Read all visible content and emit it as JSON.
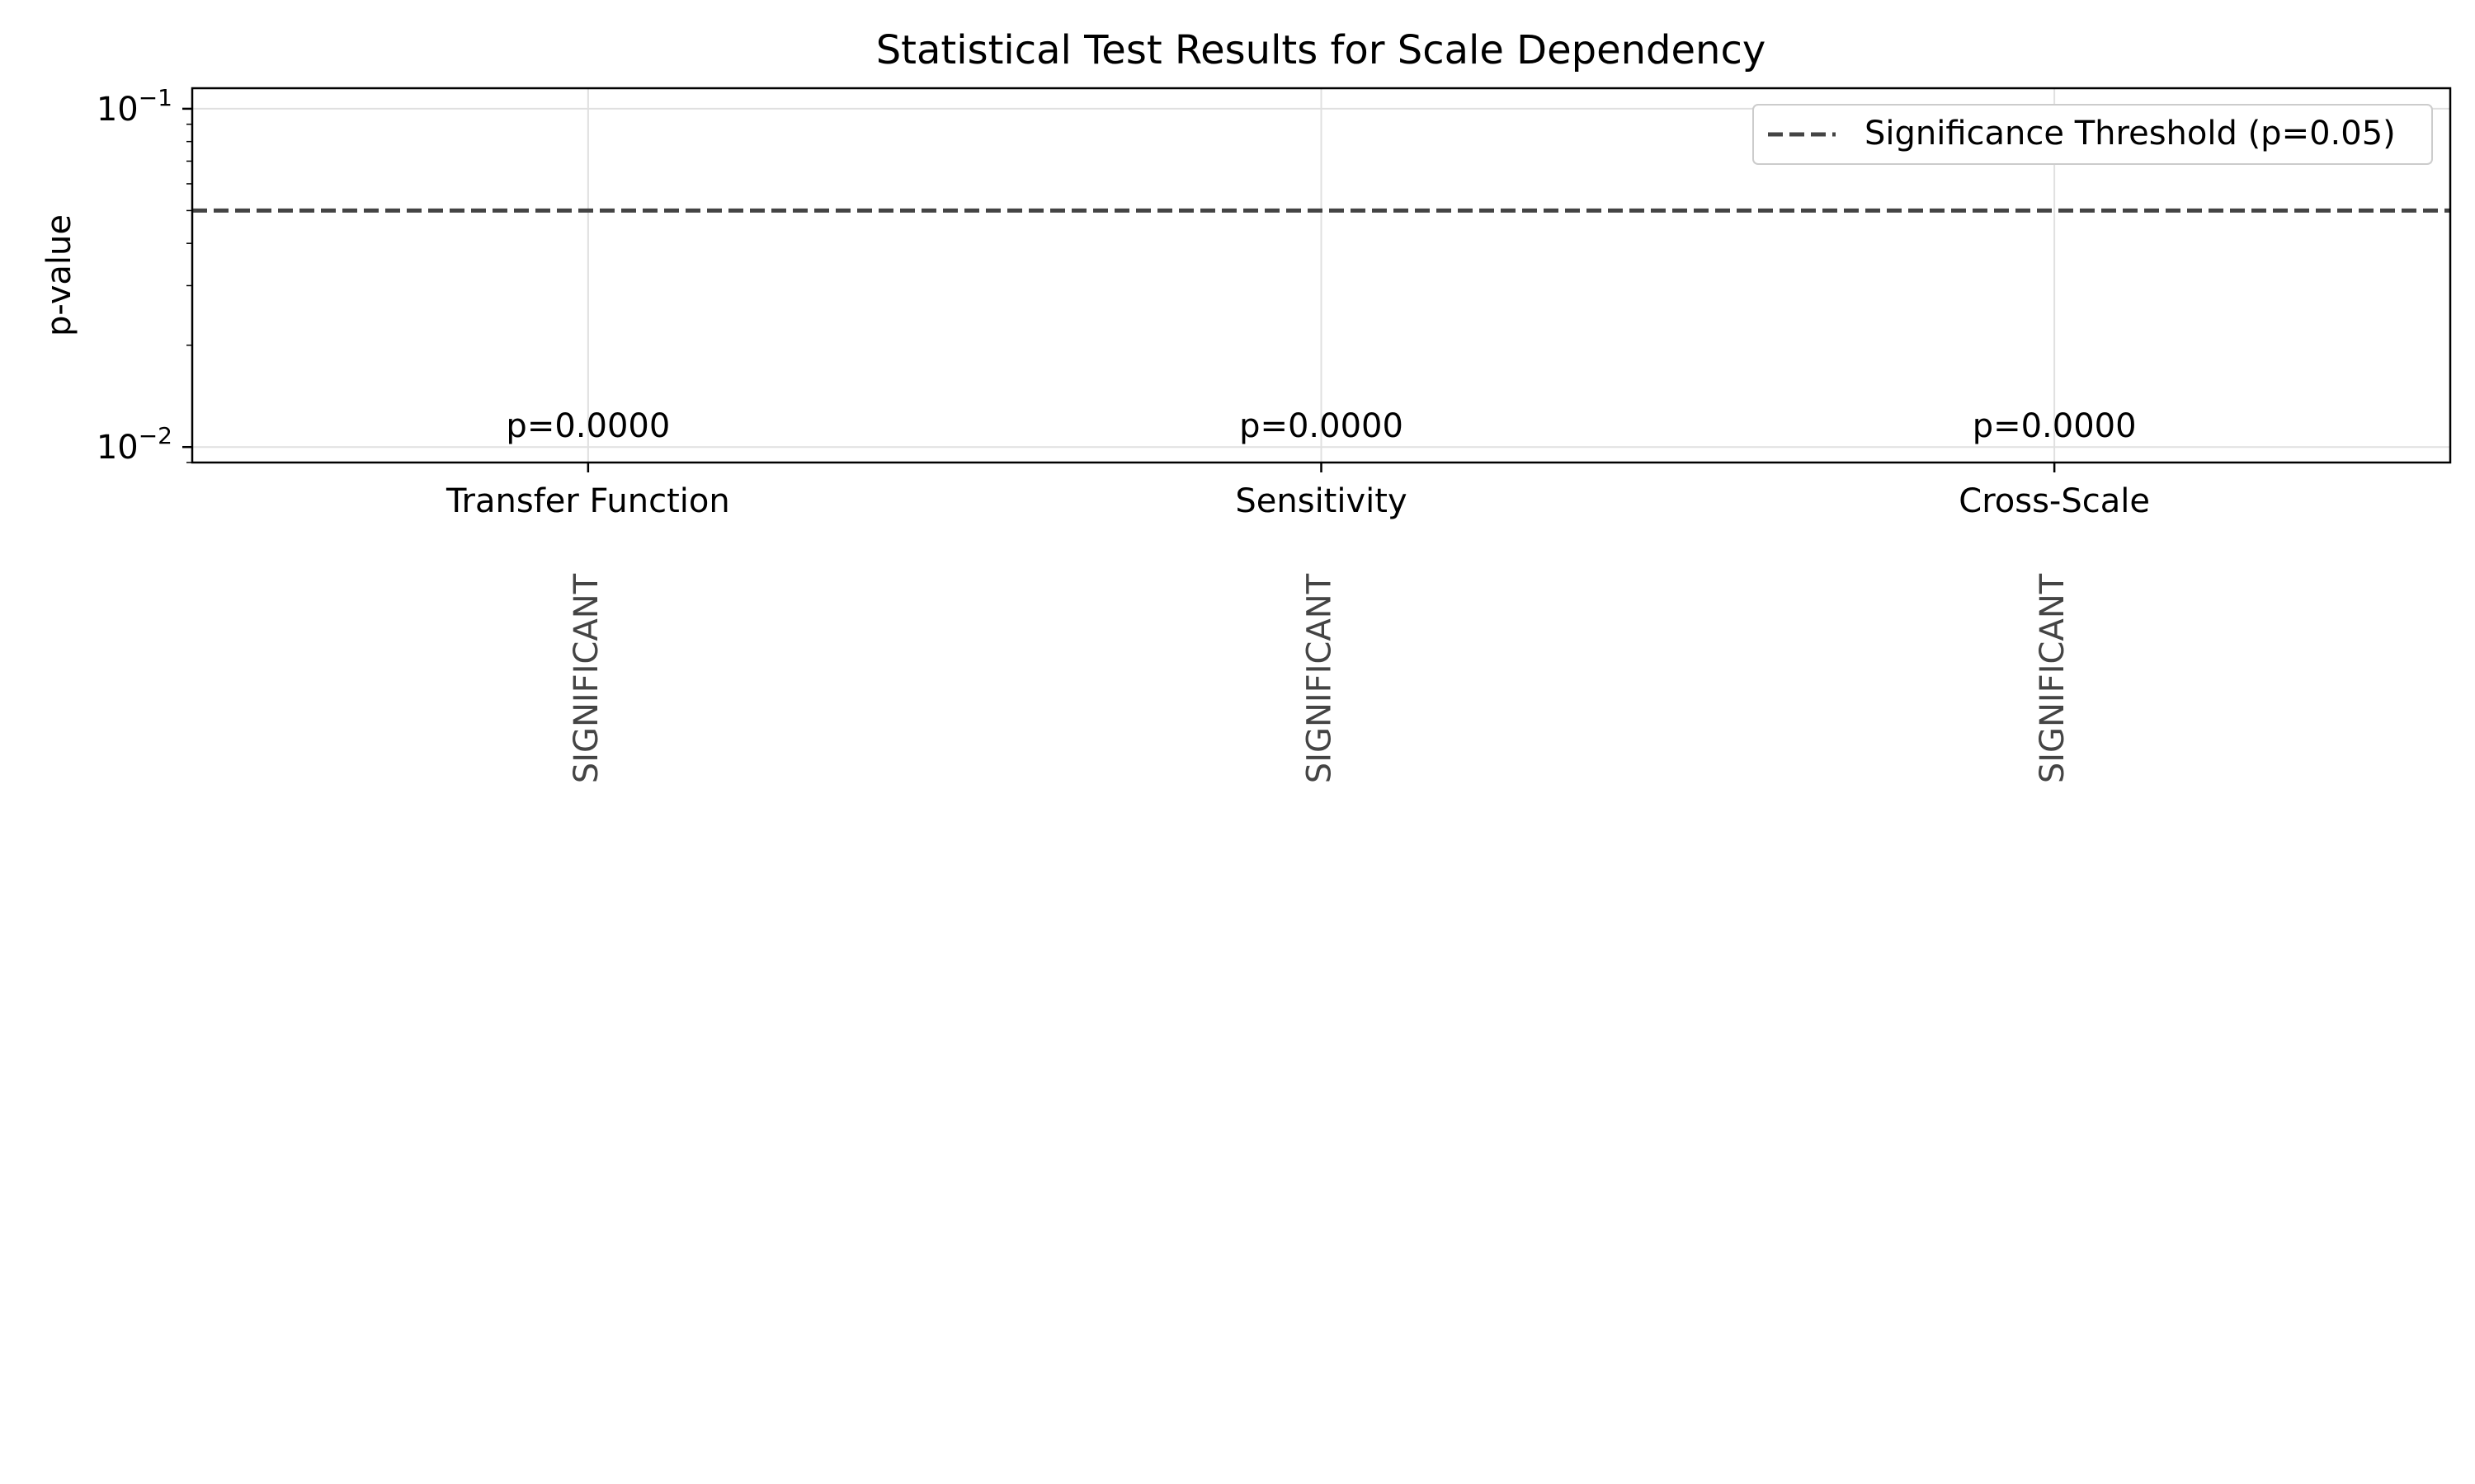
{
  "chart_data": {
    "type": "bar",
    "title": "Statistical Test Results for Scale Dependency",
    "xlabel": "",
    "ylabel": "p-value",
    "yscale": "log",
    "ylim": [
      0.009,
      0.115
    ],
    "yticks": [
      {
        "value": 0.1,
        "base": "10",
        "exp": "−1"
      },
      {
        "value": 0.01,
        "base": "10",
        "exp": "−2"
      }
    ],
    "categories": [
      "Transfer Function",
      "Sensitivity",
      "Cross-Scale"
    ],
    "values": [
      0.0,
      0.0,
      0.0
    ],
    "value_labels": [
      "p=0.0000",
      "p=0.0000",
      "p=0.0000"
    ],
    "significance_labels": [
      "SIGNIFICANT",
      "SIGNIFICANT",
      "SIGNIFICANT"
    ],
    "threshold": {
      "value": 0.05,
      "label": "Significance Threshold (p=0.05)",
      "style": "dashed",
      "color": "#444444"
    },
    "grid": true,
    "legend_position": "upper-right",
    "colors": {
      "axis": "#000000",
      "grid": "#e0e0e0",
      "annotation": "#444444",
      "text": "#000000"
    }
  }
}
